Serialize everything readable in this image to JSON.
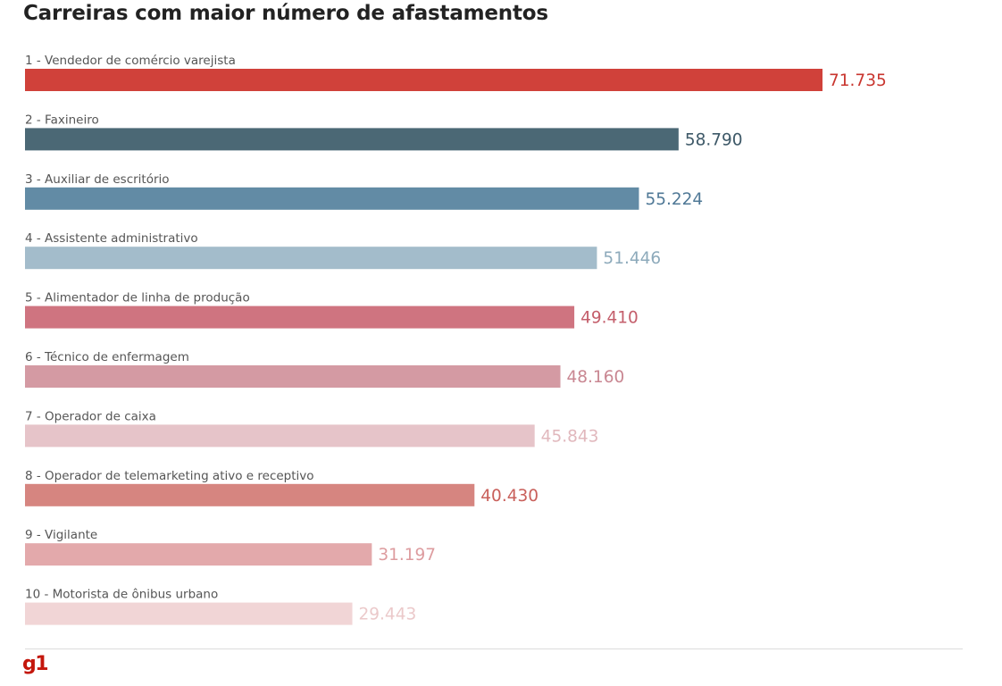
{
  "chart_data": {
    "type": "bar",
    "orientation": "horizontal",
    "title": "Carreiras com maior número de afastamentos",
    "categories": [
      "1 - Vendedor de comércio varejista",
      "2 - Faxineiro",
      "3 - Auxiliar de escritório",
      "4 - Assistente administrativo",
      "5 - Alimentador de linha de produção",
      "6 - Técnico de enfermagem",
      "7 - Operador de caixa",
      "8 - Operador de telemarketing ativo e receptivo",
      "9 - Vigilante",
      "10 - Motorista de ônibus urbano"
    ],
    "values": [
      71735,
      58790,
      55224,
      51446,
      49410,
      48160,
      45843,
      40430,
      31197,
      29443
    ],
    "value_labels": [
      "71.735",
      "58.790",
      "55.224",
      "51.446",
      "49.410",
      "48.160",
      "45.843",
      "40.430",
      "31.197",
      "29.443"
    ],
    "bar_colors": [
      "#d0413a",
      "#4b6875",
      "#628ba5",
      "#a3bccb",
      "#cf7480",
      "#d49aa3",
      "#e6c4c9",
      "#d68580",
      "#e3a9ab",
      "#f1d5d6"
    ],
    "label_colors": [
      "#c9362f",
      "#3e5968",
      "#4f7896",
      "#8daabb",
      "#c45e6b",
      "#c98792",
      "#e1b8bd",
      "#c9605b",
      "#dd9c9f",
      "#ebc9ca"
    ],
    "xlim": [
      0,
      71735
    ],
    "grid": false,
    "legend": "none"
  },
  "footer": {
    "logo_text": "g1"
  }
}
